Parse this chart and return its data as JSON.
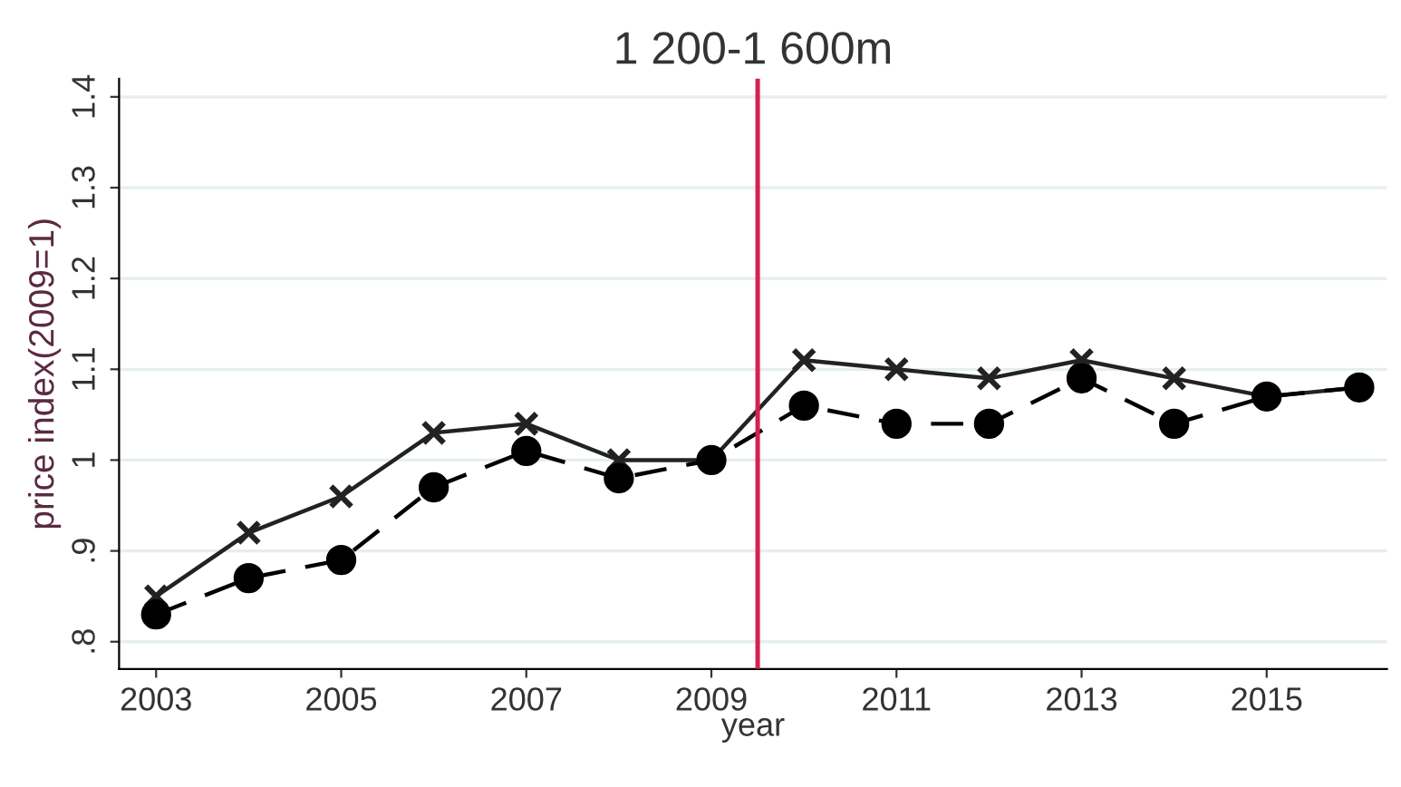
{
  "chart_data": {
    "type": "line",
    "title": "1 200-1 600m",
    "xlabel": "year",
    "ylabel": "price index(2009=1)",
    "x": [
      2003,
      2004,
      2005,
      2006,
      2007,
      2008,
      2009,
      2010,
      2011,
      2012,
      2013,
      2014,
      2015,
      2016
    ],
    "series": [
      {
        "color": "#222222",
        "marker": "cross",
        "line_style": "solid",
        "values": [
          0.85,
          0.92,
          0.96,
          1.03,
          1.04,
          1.0,
          1.0,
          1.11,
          1.1,
          1.09,
          1.11,
          1.09,
          1.07,
          1.08
        ]
      },
      {
        "color": "#000000",
        "marker": "circle",
        "line_style": "dashed",
        "values": [
          0.83,
          0.87,
          0.89,
          0.97,
          1.01,
          0.98,
          1.0,
          1.06,
          1.04,
          1.04,
          1.09,
          1.04,
          1.07,
          1.08
        ]
      }
    ],
    "xlim": [
      2002.6,
      2016.3
    ],
    "ylim": [
      0.77,
      1.42
    ],
    "xticks": [
      2003,
      2005,
      2007,
      2009,
      2011,
      2013,
      2015
    ],
    "yticks": [
      {
        "value": 0.8,
        "label": ".8"
      },
      {
        "value": 0.9,
        "label": ".9"
      },
      1,
      1.1,
      1.2,
      1.3,
      1.4
    ],
    "ref_lines": [
      {
        "axis": "x",
        "value": 2009.5,
        "color": "#d6204e"
      }
    ],
    "grid": "y",
    "legend": false
  }
}
